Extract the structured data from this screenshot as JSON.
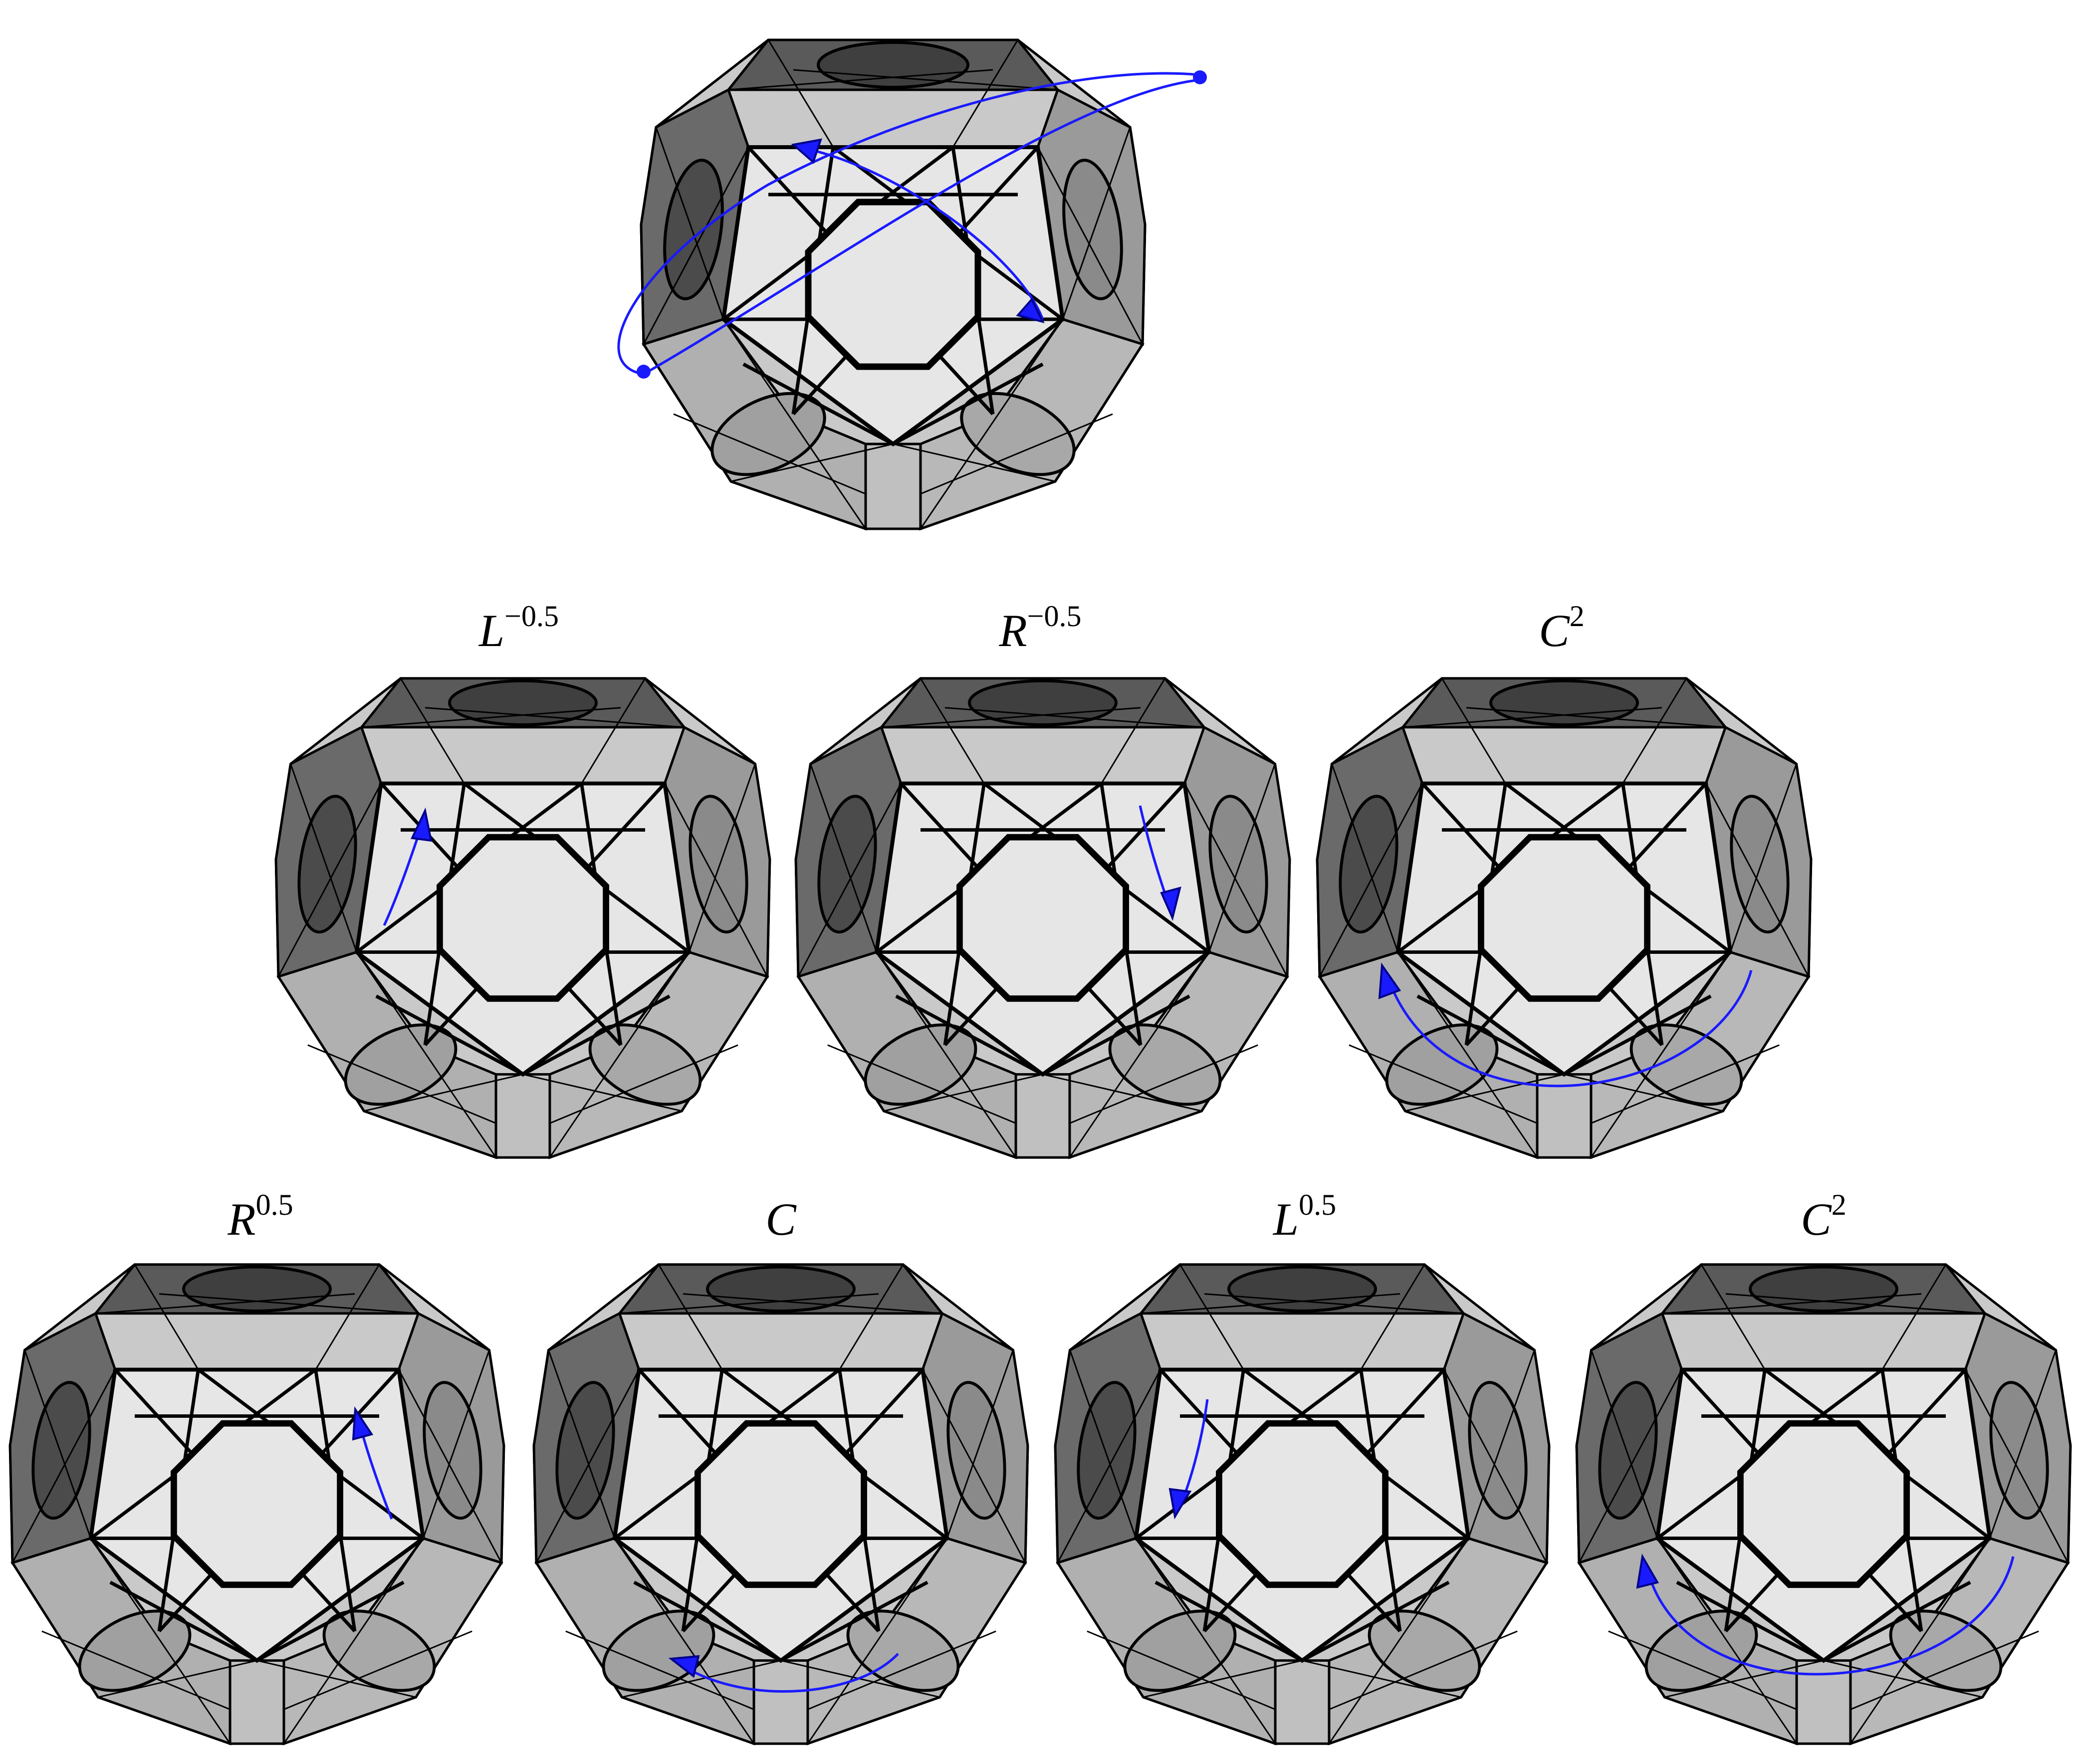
{
  "figure": {
    "top_puzzle": {
      "arrow_count": 2
    },
    "rows": [
      {
        "panels": [
          {
            "label_base": "L",
            "label_exp": "−0.5",
            "arrow": "left-up"
          },
          {
            "label_base": "R",
            "label_exp": "−0.5",
            "arrow": "right-down"
          },
          {
            "label_base": "C",
            "label_exp": "2",
            "arrow": "big-arc"
          }
        ]
      },
      {
        "panels": [
          {
            "label_base": "R",
            "label_exp": "0.5",
            "arrow": "right-up"
          },
          {
            "label_base": "C",
            "label_exp": "",
            "arrow": "small-arc"
          },
          {
            "label_base": "L",
            "label_exp": "0.5",
            "arrow": "left-down"
          },
          {
            "label_base": "C",
            "label_exp": "2",
            "arrow": "big-arc"
          }
        ]
      }
    ]
  },
  "colors": {
    "sticker_light": "#e6e6e6",
    "face_mid": "#a6a6a6",
    "face_dark": "#5a5a5a",
    "face_side": "#c9c9c9",
    "edge": "#000000",
    "arrow": "#1a1aff",
    "arrow_head": "#00008b"
  }
}
